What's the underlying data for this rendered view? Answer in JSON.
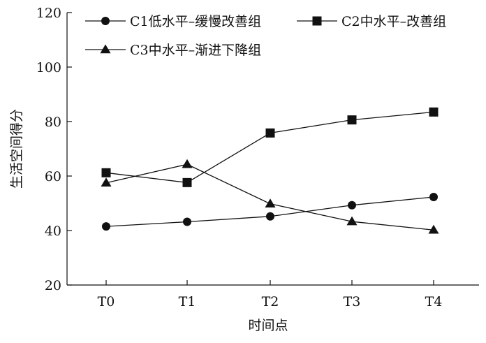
{
  "chart_data": {
    "type": "line",
    "title": "",
    "xlabel": "时间点",
    "ylabel": "生活空间得分",
    "categories": [
      "T0",
      "T1",
      "T2",
      "T3",
      "T4"
    ],
    "ylim": [
      20,
      120
    ],
    "yticks": [
      20,
      40,
      60,
      80,
      100,
      120
    ],
    "grid": false,
    "legend_position": "top",
    "series": [
      {
        "name": "C1低水平–缓慢改善组",
        "marker": "circle",
        "color": "#111111",
        "values": [
          41.5,
          43.2,
          45.2,
          49.3,
          52.3
        ]
      },
      {
        "name": "C2中水平–改善组",
        "marker": "square",
        "color": "#111111",
        "values": [
          61.2,
          57.6,
          75.8,
          80.6,
          83.5
        ]
      },
      {
        "name": "C3中水平–渐进下降组",
        "marker": "triangle",
        "color": "#111111",
        "values": [
          57.5,
          64.3,
          49.8,
          43.3,
          40.2
        ]
      }
    ]
  }
}
